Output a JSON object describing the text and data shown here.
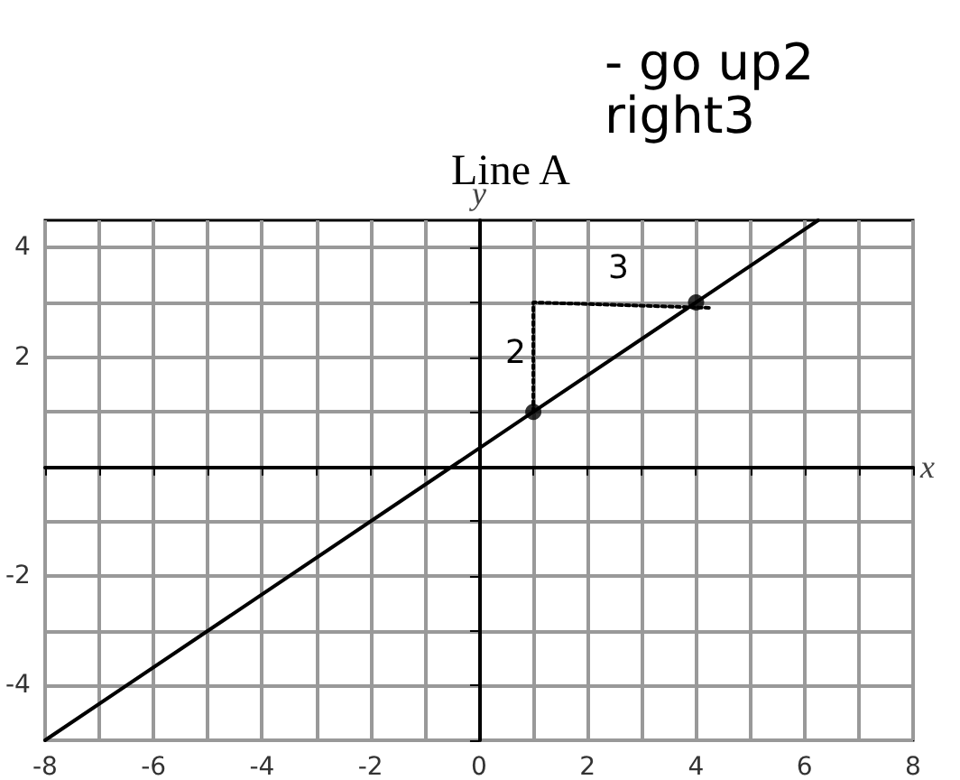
{
  "chart_data": {
    "type": "line",
    "title": "Line A",
    "xlabel": "x",
    "ylabel": "y",
    "xlim": [
      -8,
      8
    ],
    "ylim": [
      -5,
      4.5
    ],
    "xticks": [
      -8,
      {
        "value": -7,
        "label": null
      },
      -6,
      {
        "value": -5,
        "label": null
      },
      -4,
      {
        "value": -3,
        "label": null
      },
      -2,
      {
        "value": -1,
        "label": null
      },
      0,
      {
        "value": 1,
        "label": null
      },
      2,
      {
        "value": 3,
        "label": null
      },
      4,
      {
        "value": 5,
        "label": null
      },
      6,
      {
        "value": 7,
        "label": null
      },
      8
    ],
    "yticks": [
      {
        "value": -5,
        "label": null
      },
      -4,
      {
        "value": -3,
        "label": null
      },
      -2,
      {
        "value": -1,
        "label": null
      },
      {
        "value": 0,
        "label": null
      },
      {
        "value": 1,
        "label": null
      },
      2,
      {
        "value": 3,
        "label": null
      },
      4
    ],
    "grid": true,
    "series": [
      {
        "type": "line",
        "color": "#000000",
        "marker": "none",
        "line_style": "solid",
        "x": [
          -8,
          1,
          4,
          6.25
        ],
        "values": [
          -5,
          1,
          3,
          4.5
        ]
      },
      {
        "type": "scatter",
        "color": "#000000",
        "marker": "circle",
        "x": [
          1,
          4
        ],
        "values": [
          1,
          3
        ]
      },
      {
        "type": "line",
        "color": "#000000",
        "marker": "none",
        "line_style": "dotted",
        "x": [
          1,
          1,
          4.3
        ],
        "values": [
          1,
          3,
          2.9
        ]
      }
    ],
    "annotations": [
      "- go up2 right3",
      "2",
      "3"
    ]
  }
}
